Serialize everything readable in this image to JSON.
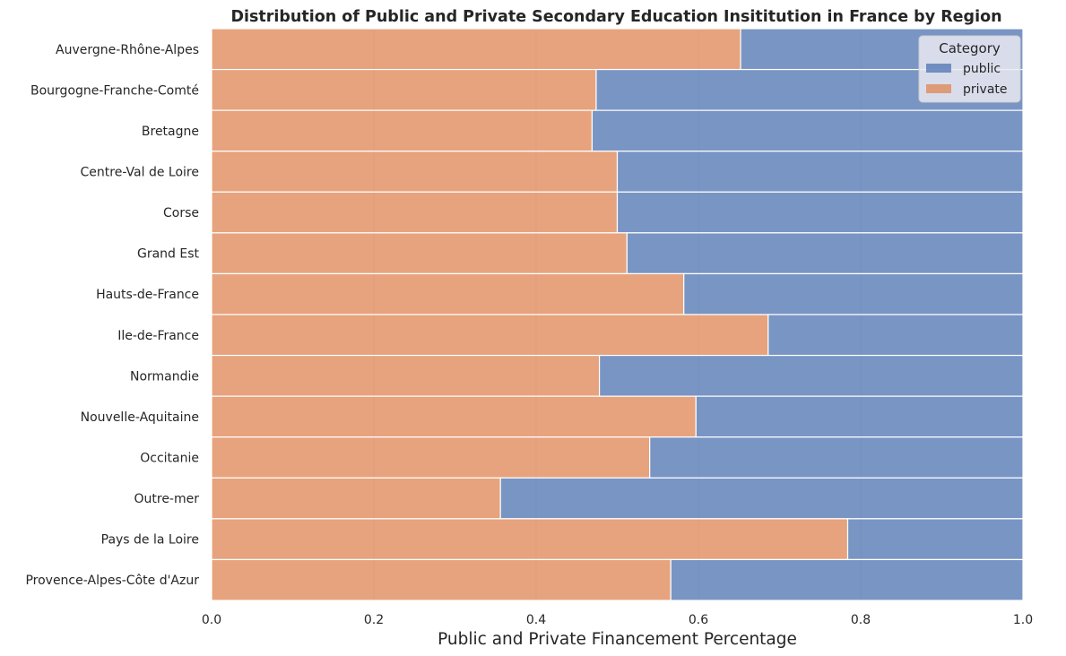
{
  "chart_data": {
    "type": "bar",
    "orientation": "horizontal",
    "stacked": "fill",
    "title": "Distribution of Public and Private Secondary Education Insititution in France by Region",
    "xlabel": "Public and Private Financement Percentage",
    "ylabel": "",
    "xlim": [
      0.0,
      1.0
    ],
    "xticks": [
      "0.0",
      "0.2",
      "0.4",
      "0.6",
      "0.8",
      "1.0"
    ],
    "categories": [
      "Auvergne-Rhône-Alpes",
      "Bourgogne-Franche-Comté",
      "Bretagne",
      "Centre-Val de Loire",
      "Corse",
      "Grand Est",
      "Hauts-de-France",
      "Ile-de-France",
      "Normandie",
      "Nouvelle-Aquitaine",
      "Occitanie",
      "Outre-mer",
      "Pays de la Loire",
      "Provence-Alpes-Côte d'Azur"
    ],
    "series": [
      {
        "name": "public",
        "color": "#4c72b0",
        "values": [
          0.348,
          0.526,
          0.531,
          0.5,
          0.5,
          0.488,
          0.418,
          0.314,
          0.522,
          0.403,
          0.46,
          0.644,
          0.216,
          0.434
        ]
      },
      {
        "name": "private",
        "color": "#dd8452",
        "values": [
          0.652,
          0.474,
          0.469,
          0.5,
          0.5,
          0.512,
          0.582,
          0.686,
          0.478,
          0.597,
          0.54,
          0.356,
          0.784,
          0.566
        ]
      }
    ],
    "legend": {
      "title": "Category",
      "entries": [
        "public",
        "private"
      ],
      "position": "top-right"
    },
    "grid": true
  }
}
